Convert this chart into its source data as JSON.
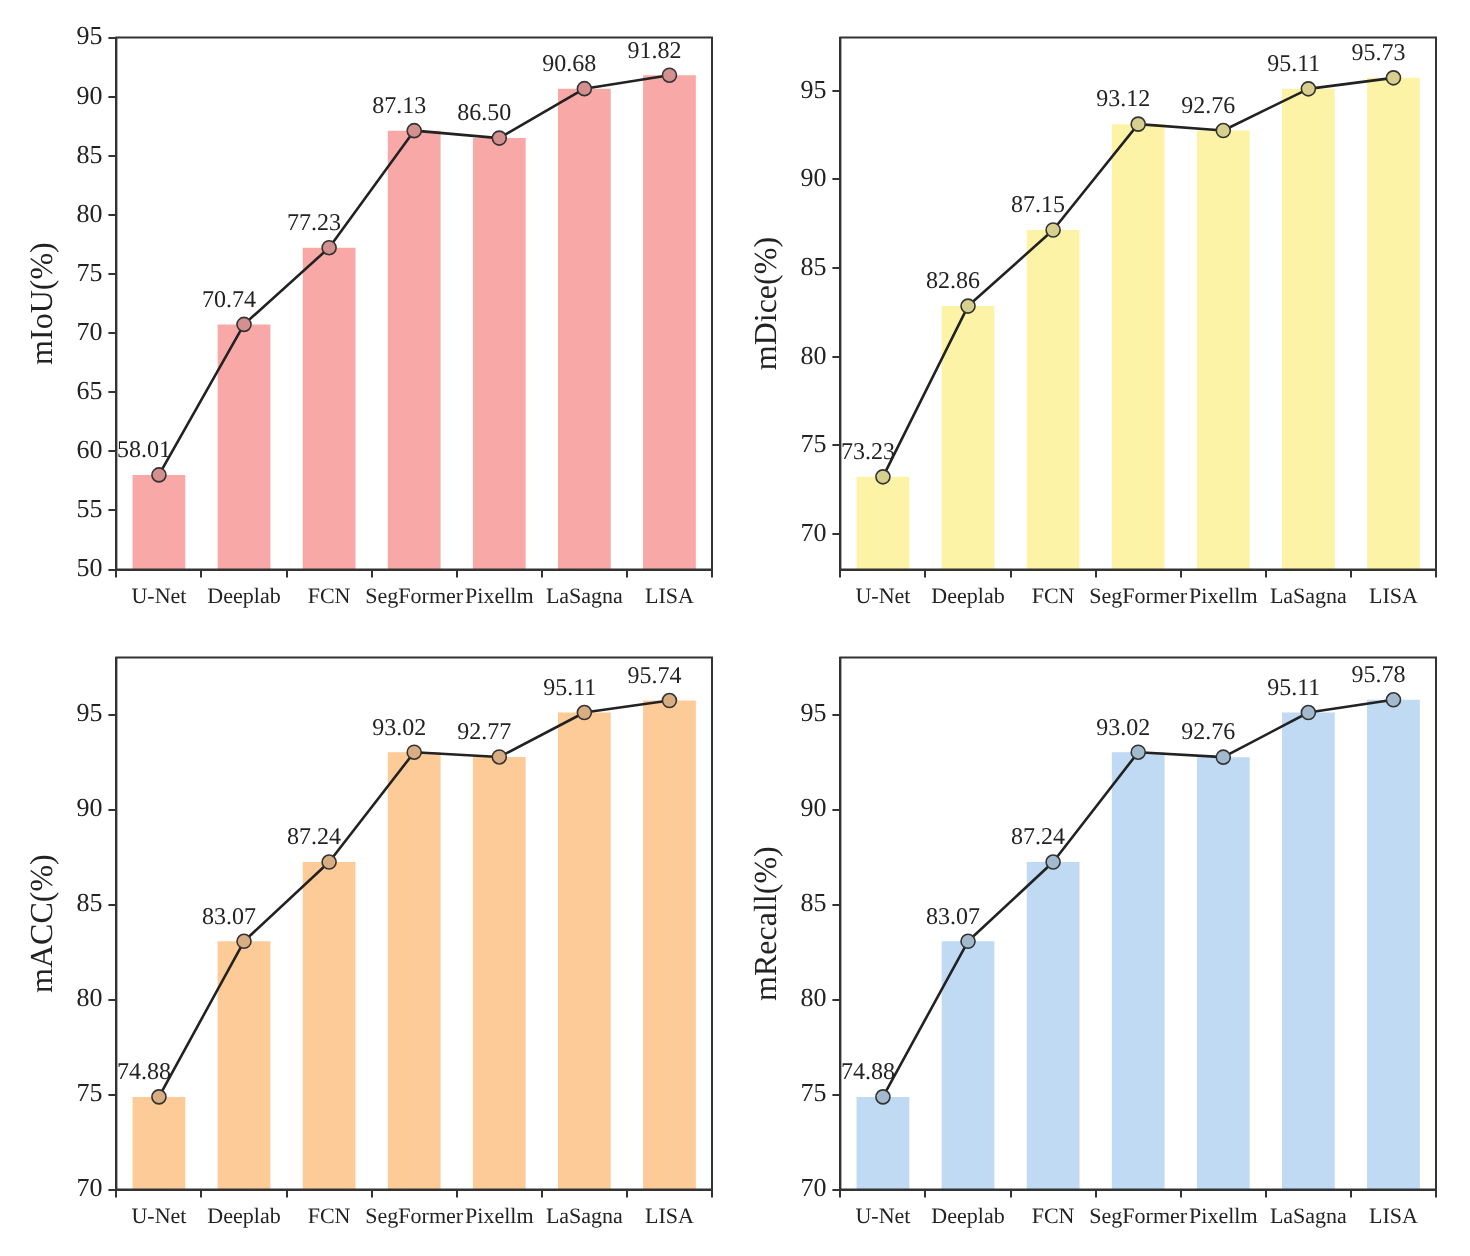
{
  "chart_data": [
    {
      "type": "bar",
      "ylabel": "mIoU(%)",
      "categories": [
        "U-Net",
        "Deeplab",
        "FCN",
        "SegFormer",
        "Pixellm",
        "LaSagna",
        "LISA"
      ],
      "ylim": [
        50,
        95
      ],
      "yticks": [
        50,
        55,
        60,
        65,
        70,
        75,
        80,
        85,
        90,
        95
      ],
      "grid": false,
      "marker": "circle",
      "series": [
        {
          "color": "#f9a8a8",
          "values": [
            58.01,
            70.74,
            77.23,
            87.13,
            86.5,
            90.68,
            91.82
          ]
        },
        {
          "type": "line",
          "color": "#222222",
          "values": [
            58.01,
            70.74,
            77.23,
            87.13,
            86.5,
            90.68,
            91.82
          ],
          "value_labels": [
            "58.01",
            "70.74",
            "77.23",
            "87.13",
            "86.50",
            "90.68",
            "91.82"
          ]
        }
      ]
    },
    {
      "type": "bar",
      "ylabel": "mDice(%)",
      "categories": [
        "U-Net",
        "Deeplab",
        "FCN",
        "SegFormer",
        "Pixellm",
        "LaSagna",
        "LISA"
      ],
      "ylim": [
        68,
        98
      ],
      "yticks": [
        70,
        75,
        80,
        85,
        90,
        95
      ],
      "grid": false,
      "marker": "circle",
      "series": [
        {
          "color": "#fdf3a6",
          "values": [
            73.23,
            82.86,
            87.15,
            93.12,
            92.76,
            95.11,
            95.73
          ]
        },
        {
          "type": "line",
          "color": "#222222",
          "values": [
            73.23,
            82.86,
            87.15,
            93.12,
            92.76,
            95.11,
            95.73
          ],
          "value_labels": [
            "73.23",
            "82.86",
            "87.15",
            "93.12",
            "92.76",
            "95.11",
            "95.73"
          ]
        }
      ]
    },
    {
      "type": "bar",
      "ylabel": "mACC(%)",
      "categories": [
        "U-Net",
        "Deeplab",
        "FCN",
        "SegFormer",
        "Pixellm",
        "LaSagna",
        "LISA"
      ],
      "ylim": [
        70,
        98
      ],
      "yticks": [
        70,
        75,
        80,
        85,
        90,
        95
      ],
      "grid": false,
      "marker": "circle",
      "series": [
        {
          "color": "#fdcb98",
          "values": [
            74.88,
            83.07,
            87.24,
            93.02,
            92.77,
            95.11,
            95.74
          ]
        },
        {
          "type": "line",
          "color": "#222222",
          "values": [
            74.88,
            83.07,
            87.24,
            93.02,
            92.77,
            95.11,
            95.74
          ],
          "value_labels": [
            "74.88",
            "83.07",
            "87.24",
            "93.02",
            "92.77",
            "95.11",
            "95.74"
          ]
        }
      ]
    },
    {
      "type": "bar",
      "ylabel": "mRecall(%)",
      "categories": [
        "U-Net",
        "Deeplab",
        "FCN",
        "SegFormer",
        "Pixellm",
        "LaSagna",
        "LISA"
      ],
      "ylim": [
        70,
        98
      ],
      "yticks": [
        70,
        75,
        80,
        85,
        90,
        95
      ],
      "grid": false,
      "marker": "circle",
      "series": [
        {
          "color": "#bfdaf2",
          "values": [
            74.88,
            83.07,
            87.24,
            93.02,
            92.76,
            95.11,
            95.78
          ]
        },
        {
          "type": "line",
          "color": "#222222",
          "values": [
            74.88,
            83.07,
            87.24,
            93.02,
            92.76,
            95.11,
            95.78
          ],
          "value_labels": [
            "74.88",
            "83.07",
            "87.24",
            "93.02",
            "92.76",
            "95.11",
            "95.78"
          ]
        }
      ]
    }
  ]
}
